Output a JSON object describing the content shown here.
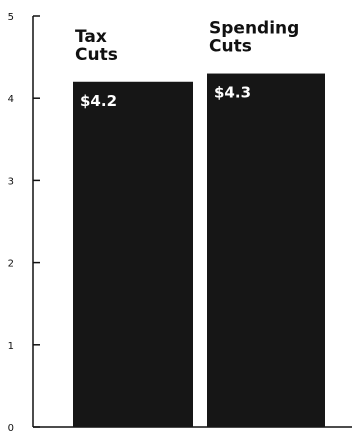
{
  "chart_data": {
    "type": "bar",
    "categories": [
      [
        "Tax",
        "Cuts"
      ],
      [
        "Spending",
        "Cuts"
      ]
    ],
    "values": [
      4.2,
      4.3
    ],
    "value_labels": [
      "$4.2",
      "$4.3"
    ],
    "yticks": [
      "0",
      "1",
      "2",
      "3",
      "4",
      "5"
    ],
    "ylim": [
      0,
      5
    ],
    "grid": false,
    "colors": {
      "bar": "#161616",
      "axis": "#111111",
      "label": "#111111",
      "value_text": "#ffffff"
    }
  }
}
